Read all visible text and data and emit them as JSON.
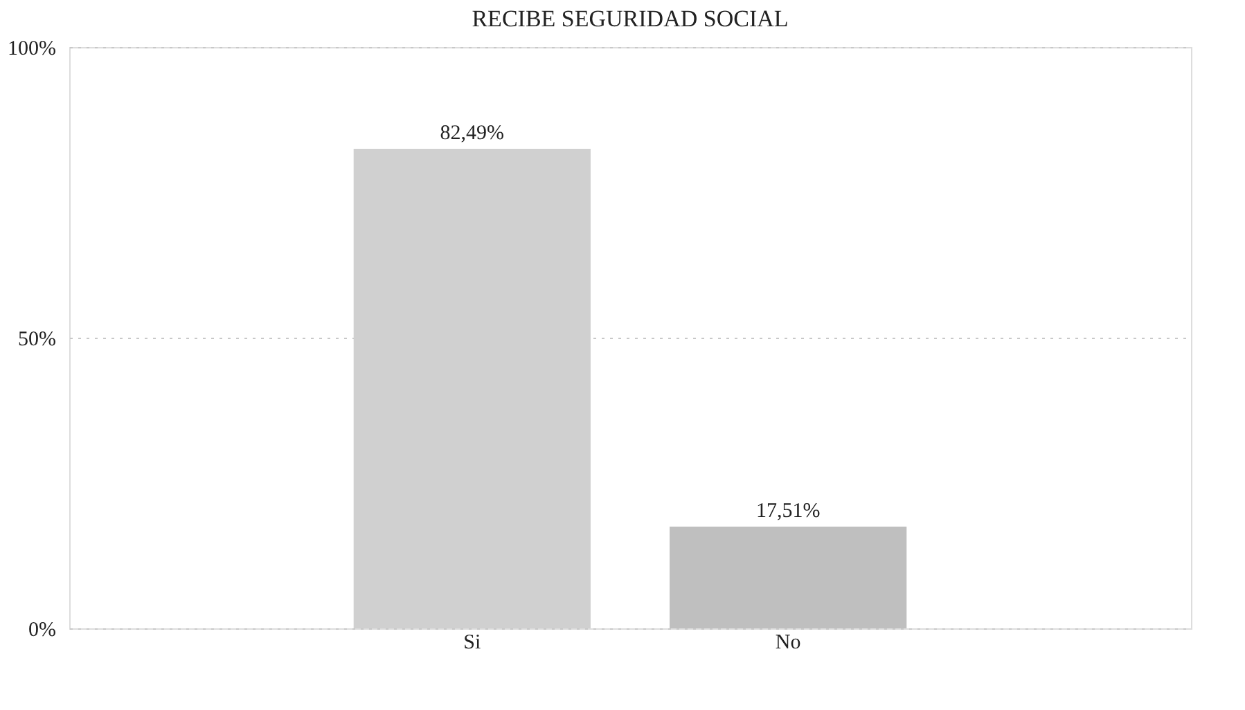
{
  "chart_data": {
    "type": "bar",
    "title": "RECIBE SEGURIDAD SOCIAL",
    "categories": [
      "Si",
      "No"
    ],
    "values": [
      82.49,
      17.51
    ],
    "colors": [
      "#d0d0d0",
      "#bfbfbf"
    ],
    "value_labels": [
      "82,49%",
      "17,51%"
    ],
    "ylim": [
      0,
      100
    ],
    "yticks": [
      {
        "value": 0,
        "label": "0%"
      },
      {
        "value": 50,
        "label": "50%"
      },
      {
        "value": 100,
        "label": "100%"
      }
    ],
    "grid": "y",
    "line_style": "dotted"
  }
}
